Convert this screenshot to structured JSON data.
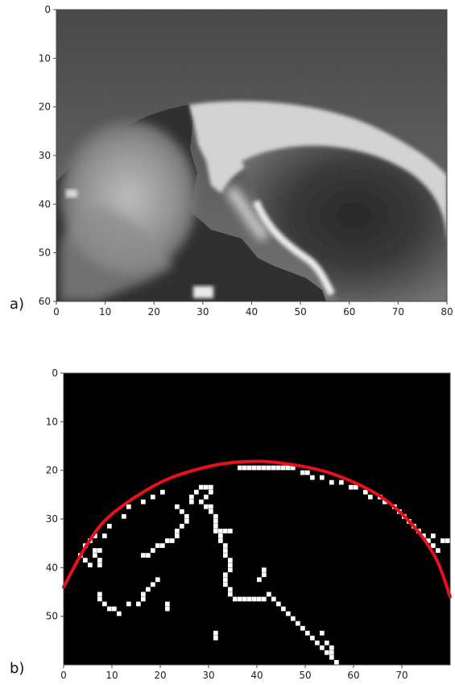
{
  "chart_data": [
    {
      "type": "heatmap",
      "panel_label": "a)",
      "description_kind": "grayscale image",
      "x_ticks": [
        0,
        10,
        20,
        30,
        40,
        50,
        60,
        70,
        80
      ],
      "y_ticks": [
        0,
        10,
        20,
        30,
        40,
        50,
        60
      ],
      "xlim": [
        0,
        80
      ],
      "ylim": [
        60,
        0
      ],
      "colors": {
        "background": "#4a4a4a",
        "bright": "#e8e8e8",
        "dark": "#111111"
      },
      "regions": {
        "upper_boundary_apex": [
          39,
          18
        ],
        "left_lobe_center": [
          14,
          40
        ],
        "right_dark_basin_center": [
          58,
          35
        ]
      }
    },
    {
      "type": "heatmap",
      "panel_label": "b)",
      "description_kind": "binary edge map with fitted circle",
      "x_ticks": [
        0,
        10,
        20,
        30,
        40,
        50,
        60,
        70
      ],
      "y_ticks": [
        0,
        10,
        20,
        30,
        40,
        50
      ],
      "xlim": [
        0,
        80
      ],
      "ylim": [
        60,
        0
      ],
      "colors": {
        "background": "#000000",
        "edge": "#ffffff",
        "fit": "#e8101a"
      },
      "fit_curve": {
        "points": [
          [
            0,
            44
          ],
          [
            5,
            35
          ],
          [
            10,
            29
          ],
          [
            20,
            22.5
          ],
          [
            30,
            19.2
          ],
          [
            38,
            18.2
          ],
          [
            45,
            18.5
          ],
          [
            55,
            20.5
          ],
          [
            65,
            25
          ],
          [
            72,
            31
          ],
          [
            77,
            38
          ],
          [
            80,
            46
          ]
        ]
      },
      "edge_points": [
        [
          3,
          37
        ],
        [
          4,
          38
        ],
        [
          5,
          39
        ],
        [
          6,
          36
        ],
        [
          7,
          36
        ],
        [
          6,
          37
        ],
        [
          7,
          38
        ],
        [
          7,
          39
        ],
        [
          8,
          33
        ],
        [
          9,
          31
        ],
        [
          12,
          29
        ],
        [
          13,
          27
        ],
        [
          16,
          26
        ],
        [
          18,
          25
        ],
        [
          20,
          24
        ],
        [
          4,
          35
        ],
        [
          5,
          34
        ],
        [
          6,
          33
        ],
        [
          7,
          45
        ],
        [
          7,
          46
        ],
        [
          8,
          47
        ],
        [
          9,
          48
        ],
        [
          10,
          48
        ],
        [
          11,
          49
        ],
        [
          13,
          47
        ],
        [
          15,
          47
        ],
        [
          16,
          46
        ],
        [
          16,
          45
        ],
        [
          17,
          44
        ],
        [
          18,
          43
        ],
        [
          19,
          42
        ],
        [
          16,
          37
        ],
        [
          17,
          37
        ],
        [
          18,
          36
        ],
        [
          19,
          35
        ],
        [
          20,
          35
        ],
        [
          21,
          34
        ],
        [
          22,
          34
        ],
        [
          23,
          33
        ],
        [
          23,
          32
        ],
        [
          24,
          31
        ],
        [
          25,
          30
        ],
        [
          25,
          29
        ],
        [
          24,
          28
        ],
        [
          23,
          27
        ],
        [
          26,
          25
        ],
        [
          26,
          26
        ],
        [
          27,
          24
        ],
        [
          28,
          23
        ],
        [
          29,
          23
        ],
        [
          30,
          23
        ],
        [
          30,
          24
        ],
        [
          29,
          25
        ],
        [
          28,
          26
        ],
        [
          29,
          27
        ],
        [
          30,
          27
        ],
        [
          30,
          28
        ],
        [
          31,
          29
        ],
        [
          31,
          30
        ],
        [
          31,
          31
        ],
        [
          31,
          32
        ],
        [
          32,
          32
        ],
        [
          33,
          32
        ],
        [
          34,
          32
        ],
        [
          32,
          33
        ],
        [
          32,
          34
        ],
        [
          33,
          35
        ],
        [
          33,
          36
        ],
        [
          33,
          37
        ],
        [
          34,
          38
        ],
        [
          34,
          39
        ],
        [
          34,
          40
        ],
        [
          33,
          41
        ],
        [
          33,
          42
        ],
        [
          33,
          43
        ],
        [
          34,
          44
        ],
        [
          34,
          45
        ],
        [
          35,
          46
        ],
        [
          36,
          46
        ],
        [
          37,
          46
        ],
        [
          38,
          46
        ],
        [
          39,
          46
        ],
        [
          40,
          46
        ],
        [
          41,
          46
        ],
        [
          40,
          42
        ],
        [
          41,
          41
        ],
        [
          41,
          40
        ],
        [
          42,
          45
        ],
        [
          43,
          46
        ],
        [
          44,
          47
        ],
        [
          45,
          48
        ],
        [
          46,
          49
        ],
        [
          47,
          50
        ],
        [
          48,
          51
        ],
        [
          49,
          52
        ],
        [
          50,
          53
        ],
        [
          51,
          54
        ],
        [
          52,
          55
        ],
        [
          53,
          56
        ],
        [
          54,
          57
        ],
        [
          55,
          58
        ],
        [
          56,
          59
        ],
        [
          54,
          55
        ],
        [
          55,
          56
        ],
        [
          55,
          57
        ],
        [
          53,
          53
        ],
        [
          31,
          53
        ],
        [
          31,
          54
        ],
        [
          21,
          47
        ],
        [
          21,
          48
        ],
        [
          40,
          19
        ],
        [
          41,
          19
        ],
        [
          42,
          19
        ],
        [
          43,
          19
        ],
        [
          44,
          19
        ],
        [
          45,
          19
        ],
        [
          46,
          19
        ],
        [
          47,
          19
        ],
        [
          37,
          19
        ],
        [
          38,
          19
        ],
        [
          39,
          19
        ],
        [
          36,
          19
        ],
        [
          49,
          20
        ],
        [
          50,
          20
        ],
        [
          51,
          21
        ],
        [
          53,
          21
        ],
        [
          55,
          22
        ],
        [
          57,
          22
        ],
        [
          59,
          23
        ],
        [
          60,
          23
        ],
        [
          62,
          24
        ],
        [
          63,
          25
        ],
        [
          65,
          25
        ],
        [
          66,
          26
        ],
        [
          68,
          27
        ],
        [
          69,
          28
        ],
        [
          70,
          29
        ],
        [
          71,
          30
        ],
        [
          72,
          31
        ],
        [
          73,
          32
        ],
        [
          74,
          33
        ],
        [
          75,
          34
        ],
        [
          76,
          35
        ],
        [
          77,
          36
        ],
        [
          78,
          34
        ],
        [
          79,
          34
        ],
        [
          76,
          33
        ]
      ]
    }
  ]
}
